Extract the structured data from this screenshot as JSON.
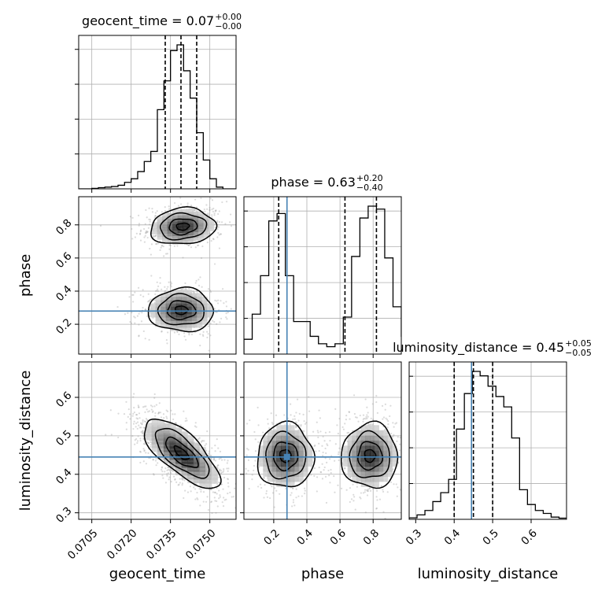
{
  "chart_data": {
    "type": "corner",
    "parameters": [
      "geocent_time",
      "phase",
      "luminosity_distance"
    ],
    "axis_labels": {
      "geocent_time": "geocent_time",
      "phase": "phase",
      "luminosity_distance": "luminosity_distance"
    },
    "ranges": {
      "geocent_time": [
        0.07,
        0.076
      ],
      "phase": [
        0.02,
        0.97
      ],
      "luminosity_distance": [
        0.283,
        0.692
      ]
    },
    "ticks": {
      "geocent_time": [
        {
          "v": 0.0705,
          "label": "0.0705"
        },
        {
          "v": 0.072,
          "label": "0.0720"
        },
        {
          "v": 0.0735,
          "label": "0.0735"
        },
        {
          "v": 0.075,
          "label": "0.0750"
        }
      ],
      "phase": [
        {
          "v": 0.2,
          "label": "0.2"
        },
        {
          "v": 0.4,
          "label": "0.4"
        },
        {
          "v": 0.6,
          "label": "0.6"
        },
        {
          "v": 0.8,
          "label": "0.8"
        }
      ],
      "luminosity_distance": [
        {
          "v": 0.3,
          "label": "0.3"
        },
        {
          "v": 0.4,
          "label": "0.4"
        },
        {
          "v": 0.5,
          "label": "0.5"
        },
        {
          "v": 0.6,
          "label": "0.6"
        }
      ]
    },
    "truths": {
      "phase": 0.28,
      "luminosity_distance": 0.445
    },
    "truth_color": "#4682b4",
    "titles": [
      {
        "param": "geocent_time",
        "text": "geocent_time = 0.07",
        "plus": "+0.00",
        "minus": "−0.00"
      },
      {
        "param": "phase",
        "text": "phase = 0.63",
        "plus": "+0.20",
        "minus": "−0.40"
      },
      {
        "param": "luminosity_distance",
        "text": "luminosity_distance = 0.45",
        "plus": "+0.05",
        "minus": "−0.05"
      }
    ],
    "quantiles": {
      "geocent_time": [
        0.0733,
        0.0739,
        0.0745
      ],
      "phase": [
        0.23,
        0.63,
        0.82
      ],
      "luminosity_distance": [
        0.4,
        0.45,
        0.5
      ]
    },
    "histograms": {
      "geocent_time": {
        "x0": 0.07,
        "dx": 0.00025,
        "counts": [
          0,
          0,
          0.003,
          0.008,
          0.012,
          0.016,
          0.025,
          0.045,
          0.07,
          0.12,
          0.19,
          0.26,
          0.55,
          0.75,
          0.96,
          1.0,
          0.82,
          0.63,
          0.39,
          0.2,
          0.07,
          0.012,
          0,
          0
        ]
      },
      "phase": {
        "x0": 0.02,
        "dx": 0.05,
        "counts": [
          0.1,
          0.27,
          0.53,
          0.9,
          0.95,
          0.53,
          0.22,
          0.22,
          0.12,
          0.07,
          0.05,
          0.07,
          0.25,
          0.66,
          0.92,
          1.0,
          0.98,
          0.65,
          0.32,
          0.12
        ]
      },
      "luminosity_distance": {
        "x0": 0.283,
        "dx": 0.0205,
        "counts": [
          0.01,
          0.03,
          0.06,
          0.12,
          0.18,
          0.27,
          0.61,
          0.85,
          1.0,
          0.97,
          0.9,
          0.83,
          0.76,
          0.55,
          0.2,
          0.1,
          0.06,
          0.04,
          0.015,
          0.008
        ]
      }
    },
    "grid": true
  }
}
